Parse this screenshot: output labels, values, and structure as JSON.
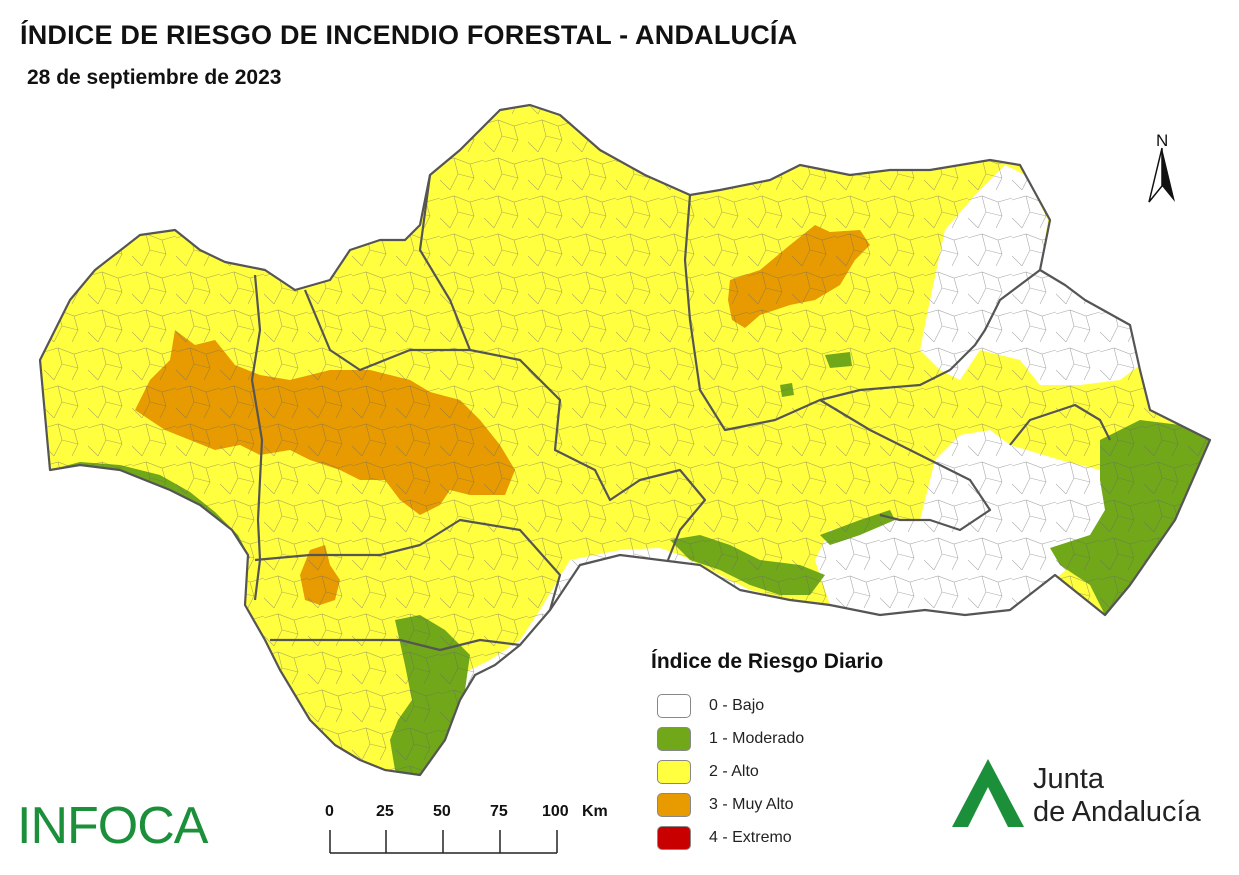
{
  "header": {
    "title": "ÍNDICE DE RIESGO DE INCENDIO FORESTAL - ANDALUCÍA",
    "date": "28 de septiembre de 2023"
  },
  "compass": {
    "label": "N"
  },
  "legend": {
    "title": "Índice de Riesgo Diario",
    "items": [
      {
        "label": "0 - Bajo",
        "color": "#ffffff"
      },
      {
        "label": "1 - Moderado",
        "color": "#70a81a"
      },
      {
        "label": "2 - Alto",
        "color": "#ffff40"
      },
      {
        "label": "3 - Muy Alto",
        "color": "#e79b00"
      },
      {
        "label": "4 - Extremo",
        "color": "#c80000"
      }
    ]
  },
  "scale_bar": {
    "ticks": [
      "0",
      "25",
      "50",
      "75",
      "100"
    ],
    "unit": "Km"
  },
  "logos": {
    "infoca": "INFOCA",
    "junta_line1": "Junta",
    "junta_line2": "de Andalucía",
    "junta_color": "#1b8f3a"
  },
  "map": {
    "region": "Andalucía",
    "risk_colors": {
      "bajo": "#ffffff",
      "moderado": "#70a81a",
      "alto": "#ffff40",
      "muy_alto": "#e79b00",
      "border": "#555555"
    }
  }
}
